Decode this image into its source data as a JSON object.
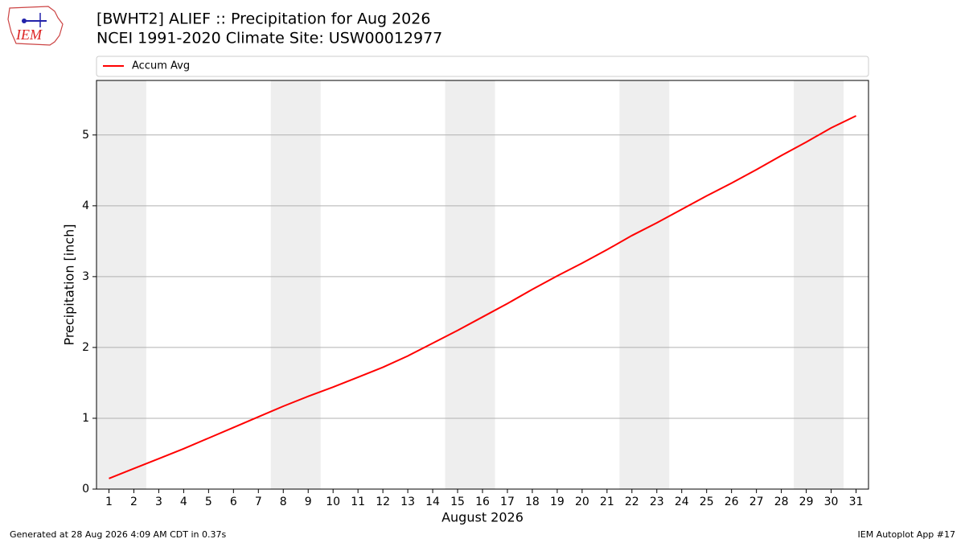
{
  "logo_text": "IEM",
  "footer_left": "Generated at 28 Aug 2026 4:09 AM CDT in 0.37s",
  "footer_right": "IEM Autoplot App #17",
  "chart_data": {
    "type": "line",
    "title": "[BWHT2] ALIEF :: Precipitation for Aug 2026",
    "subtitle": "NCEI 1991-2020 Climate Site: USW00012977",
    "x_label": "August 2026",
    "y_label": "Precipitation [inch]",
    "x": [
      1,
      2,
      3,
      4,
      5,
      6,
      7,
      8,
      9,
      10,
      11,
      12,
      13,
      14,
      15,
      16,
      17,
      18,
      19,
      20,
      21,
      22,
      23,
      24,
      25,
      26,
      27,
      28,
      29,
      30,
      31
    ],
    "series": [
      {
        "name": "Accum Avg",
        "color": "#ff0000",
        "values": [
          0.15,
          0.29,
          0.43,
          0.57,
          0.72,
          0.87,
          1.02,
          1.17,
          1.31,
          1.44,
          1.58,
          1.72,
          1.88,
          2.06,
          2.24,
          2.43,
          2.62,
          2.82,
          3.01,
          3.19,
          3.38,
          3.58,
          3.76,
          3.95,
          4.14,
          4.32,
          4.51,
          4.71,
          4.9,
          5.1,
          5.27
        ]
      }
    ],
    "xlim": [
      0.5,
      31.5
    ],
    "ylim": [
      0,
      5.77
    ],
    "xticks": [
      1,
      2,
      3,
      4,
      5,
      6,
      7,
      8,
      9,
      10,
      11,
      12,
      13,
      14,
      15,
      16,
      17,
      18,
      19,
      20,
      21,
      22,
      23,
      24,
      25,
      26,
      27,
      28,
      29,
      30,
      31
    ],
    "yticks": [
      0,
      1,
      2,
      3,
      4,
      5
    ],
    "grid": true,
    "legend": "top",
    "shaded_x_ranges": [
      [
        0.5,
        2.5
      ],
      [
        7.5,
        9.5
      ],
      [
        14.5,
        16.5
      ],
      [
        21.5,
        23.5
      ],
      [
        28.5,
        30.5
      ]
    ],
    "shade_color": "#eeeeee"
  }
}
